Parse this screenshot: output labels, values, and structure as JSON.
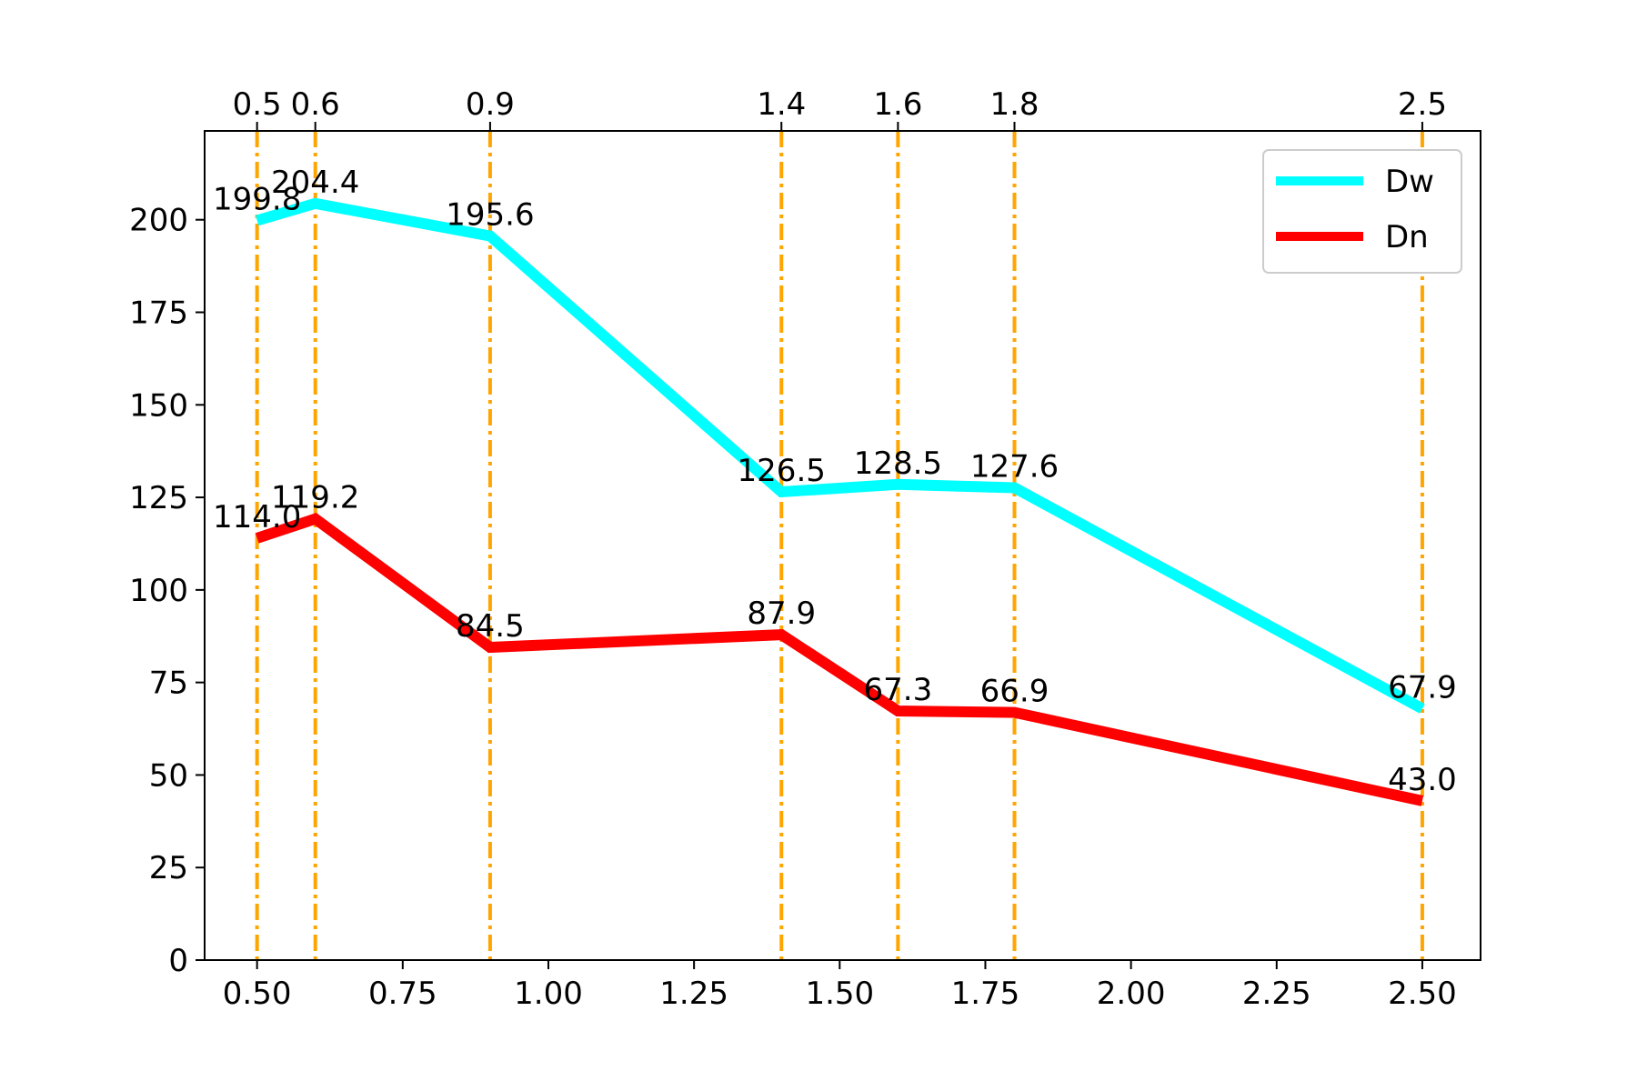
{
  "chart_data": {
    "type": "line",
    "title": "",
    "xlabel": "",
    "ylabel": "",
    "x": [
      0.5,
      0.6,
      0.9,
      1.4,
      1.6,
      1.8,
      2.5
    ],
    "top_tick_labels": [
      "0.5",
      "0.6",
      "0.9",
      "1.4",
      "1.6",
      "1.8",
      "2.5"
    ],
    "xticks": [
      "0.50",
      "0.75",
      "1.00",
      "1.25",
      "1.50",
      "1.75",
      "2.00",
      "2.25",
      "2.50"
    ],
    "yticks": [
      "0",
      "25",
      "50",
      "75",
      "100",
      "125",
      "150",
      "175",
      "200"
    ],
    "xlim": [
      0.41,
      2.6
    ],
    "ylim": [
      0,
      224
    ],
    "grid": false,
    "legend_position": "top-right",
    "vlines": {
      "x": [
        0.5,
        0.6,
        0.9,
        1.4,
        1.6,
        1.8,
        2.5
      ],
      "color": "#ffa500",
      "style": "dash-dot"
    },
    "series": [
      {
        "name": "Dw",
        "color": "#00ffff",
        "values": [
          199.8,
          204.4,
          195.6,
          126.5,
          128.5,
          127.6,
          67.9
        ],
        "labels": [
          "199.8",
          "204.4",
          "195.6",
          "126.5",
          "128.5",
          "127.6",
          "67.9"
        ]
      },
      {
        "name": "Dn",
        "color": "#ff0000",
        "values": [
          114.0,
          119.2,
          84.5,
          87.9,
          67.3,
          66.9,
          43.0
        ],
        "labels": [
          "114.0",
          "119.2",
          "84.5",
          "87.9",
          "67.3",
          "66.9",
          "43.0"
        ]
      }
    ]
  }
}
